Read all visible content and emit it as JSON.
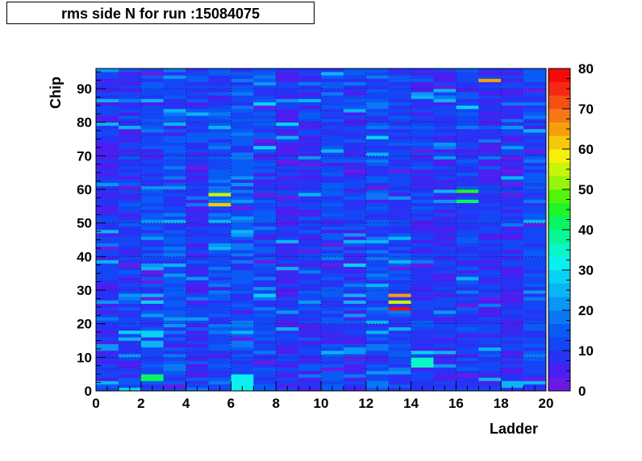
{
  "chart_data": {
    "type": "heatmap",
    "title": "rms side N for run :15084075",
    "xlabel": "Ladder",
    "ylabel": "Chip",
    "xlim": [
      0,
      20
    ],
    "ylim": [
      0,
      96
    ],
    "zlim": [
      0,
      80
    ],
    "x_ticks": [
      0,
      2,
      4,
      6,
      8,
      10,
      12,
      14,
      16,
      18,
      20
    ],
    "y_ticks": [
      0,
      10,
      20,
      30,
      40,
      50,
      60,
      70,
      80,
      90
    ],
    "z_ticks": [
      0,
      10,
      20,
      30,
      40,
      50,
      60,
      70,
      80
    ],
    "grid": true,
    "colorbar": "right",
    "palette": [
      "#6a1ae6",
      "#4a1ff0",
      "#2832f5",
      "#1446f5",
      "#0a5af5",
      "#0a78f5",
      "#0a96f5",
      "#0ab4f5",
      "#08d2f5",
      "#0af0f0",
      "#0af5c8",
      "#0af596",
      "#0af564",
      "#1ef528",
      "#50f50a",
      "#96f50a",
      "#c8f50a",
      "#f5f00a",
      "#f5c80a",
      "#f5a00a",
      "#f57814",
      "#f55014",
      "#f52814",
      "#f50a0a"
    ],
    "x_bins": 20,
    "y_bins": 96,
    "z_hotspots": [
      {
        "ladder": 5,
        "chip": [
          55,
          56
        ],
        "value": 60
      },
      {
        "ladder": 5,
        "chip": [
          58,
          59
        ],
        "value": 55
      },
      {
        "ladder": 13,
        "chip": [
          24,
          25
        ],
        "value": 80
      },
      {
        "ladder": 13,
        "chip": [
          26,
          27
        ],
        "value": 55
      },
      {
        "ladder": 13,
        "chip": [
          28,
          29
        ],
        "value": 65
      },
      {
        "ladder": 17,
        "chip": [
          92,
          93
        ],
        "value": 65
      },
      {
        "ladder": 16,
        "chip": [
          59,
          60
        ],
        "value": 45
      },
      {
        "ladder": 16,
        "chip": [
          56,
          57
        ],
        "value": 40
      },
      {
        "ladder": 2,
        "chip": [
          3,
          5
        ],
        "value": 40
      },
      {
        "ladder": 14,
        "chip": [
          7,
          10
        ],
        "value": 35
      },
      {
        "ladder": 6,
        "chip": [
          0,
          5
        ],
        "value": 30
      }
    ]
  }
}
